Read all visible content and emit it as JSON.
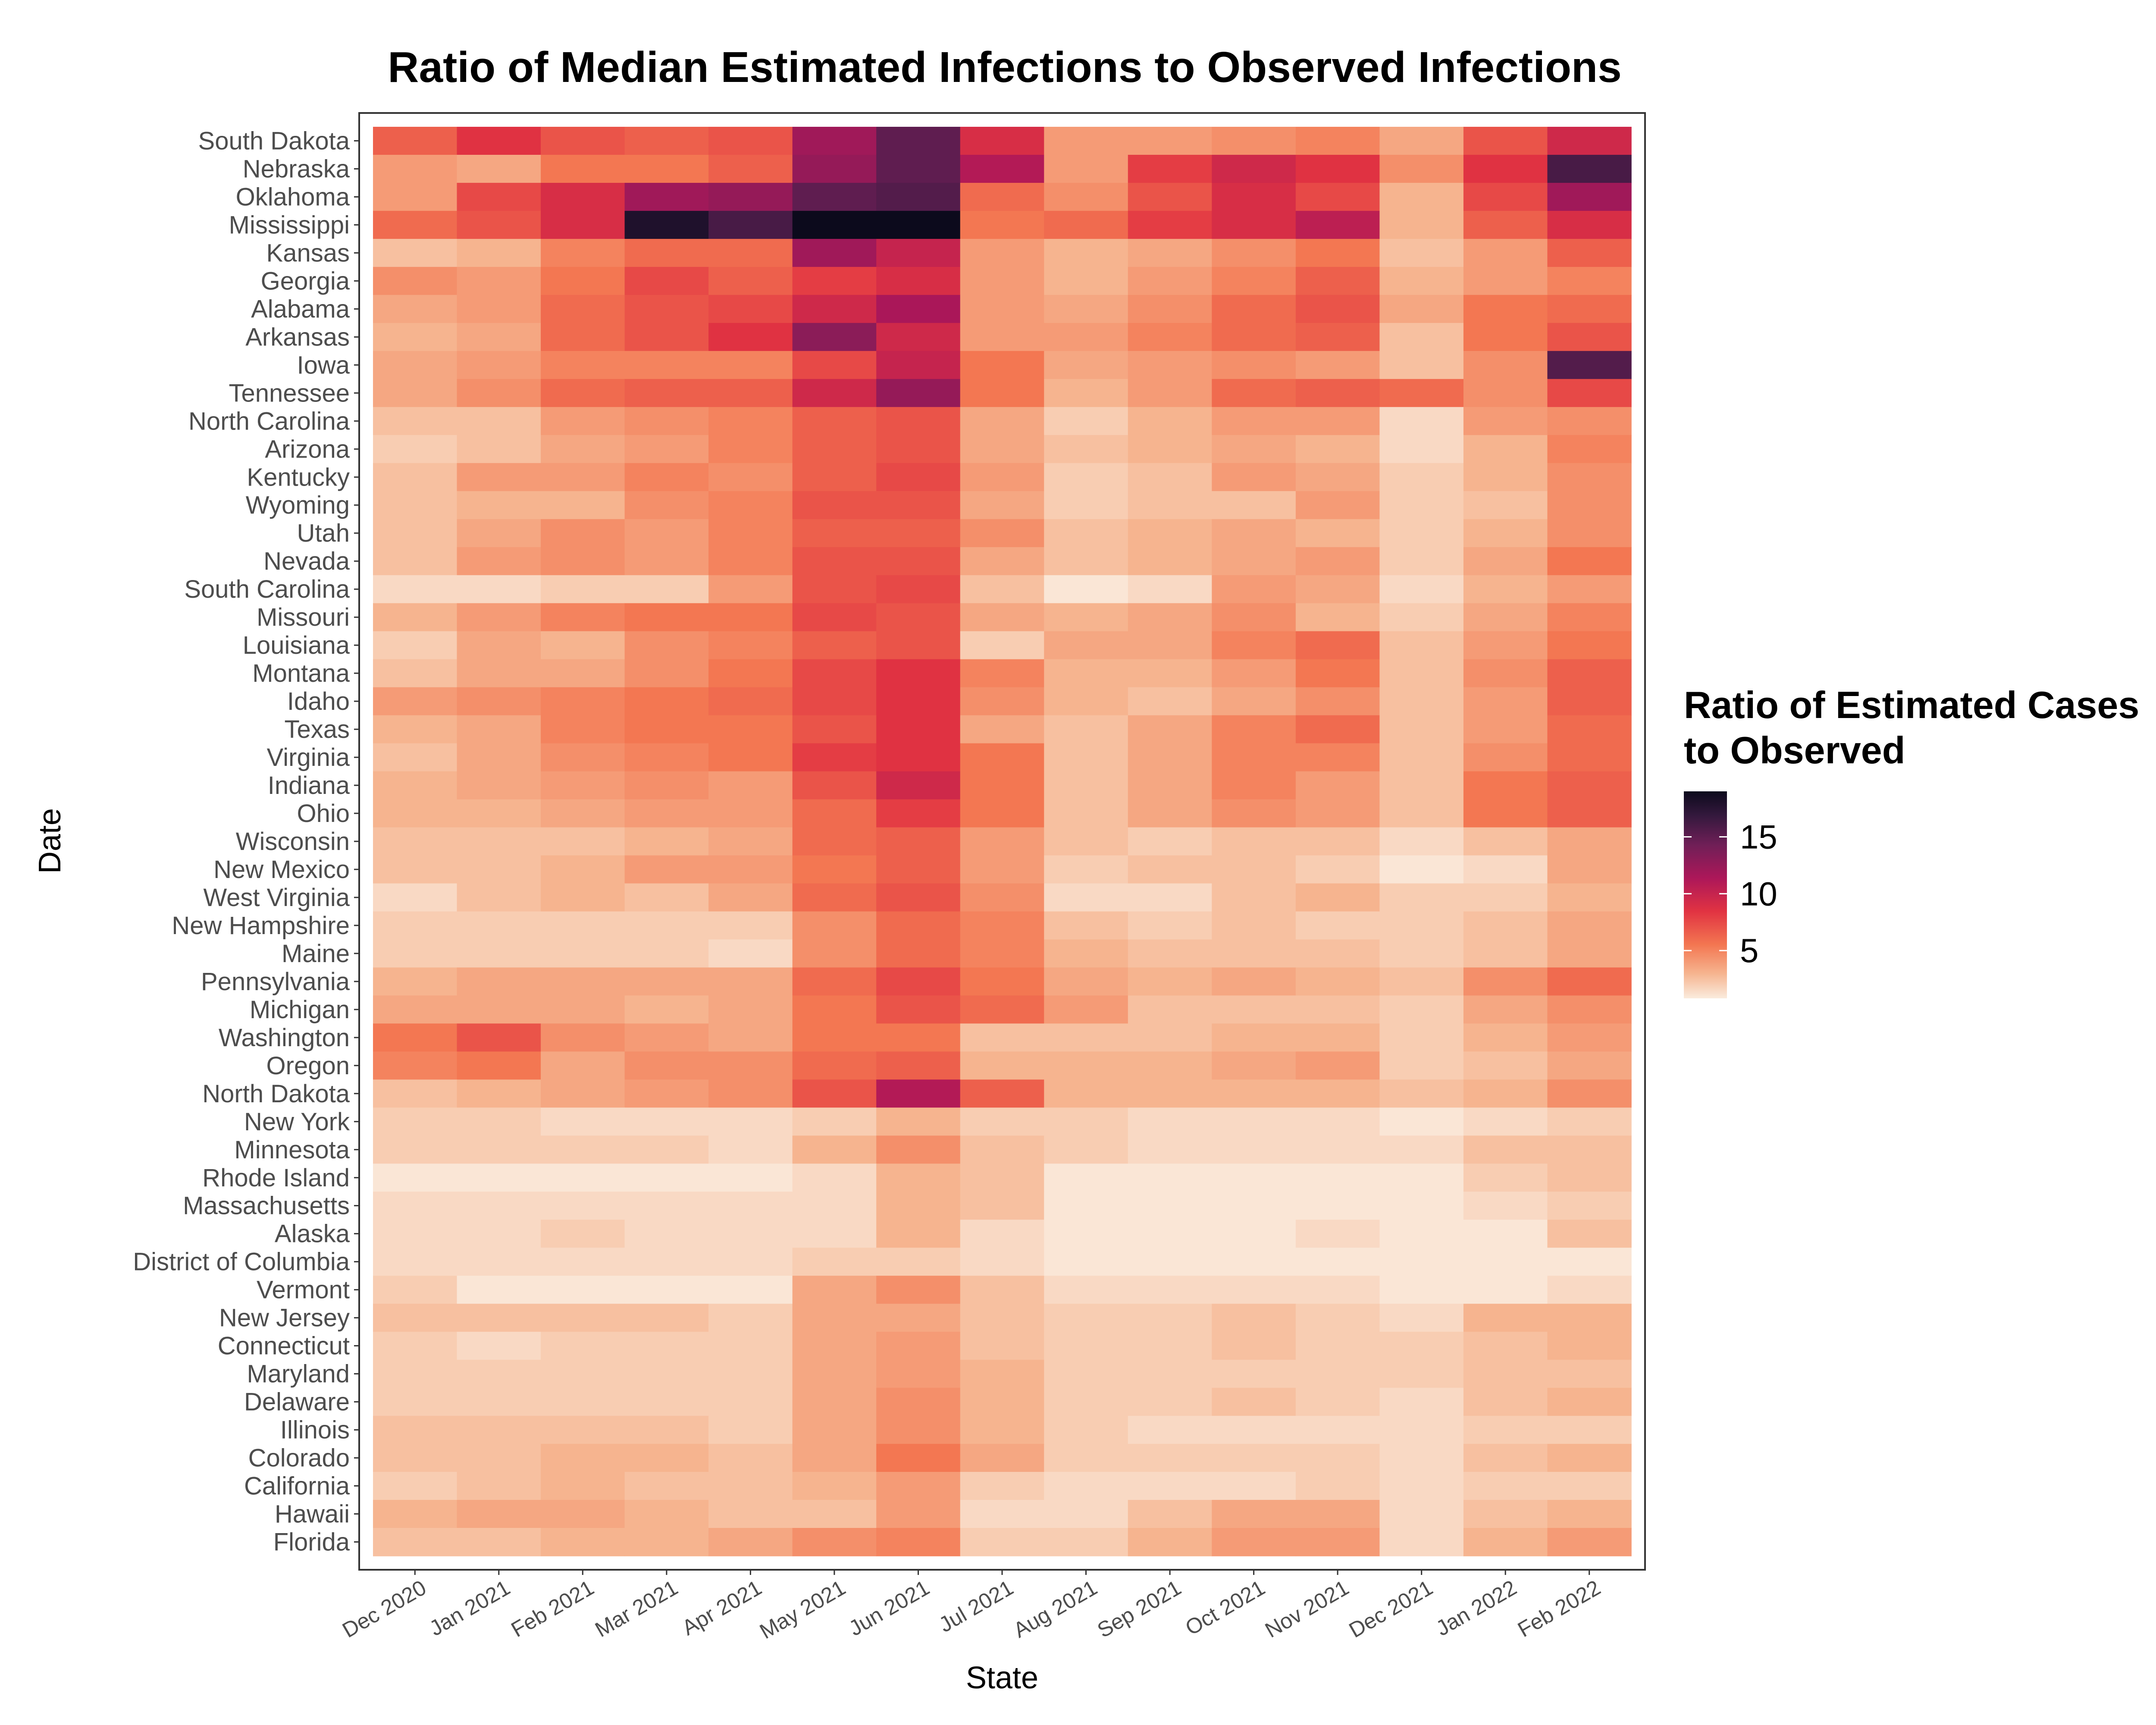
{
  "chart_data": {
    "type": "heatmap",
    "title": "Ratio of Median Estimated Infections to Observed Infections",
    "xlabel": "State",
    "ylabel": "Date",
    "x_categories": [
      "Dec 2020",
      "Jan 2021",
      "Feb 2021",
      "Mar 2021",
      "Apr 2021",
      "May 2021",
      "Jun 2021",
      "Jul 2021",
      "Aug 2021",
      "Sep 2021",
      "Oct 2021",
      "Nov 2021",
      "Dec 2021",
      "Jan 2022",
      "Feb 2022"
    ],
    "y_categories": [
      "South Dakota",
      "Nebraska",
      "Oklahoma",
      "Mississippi",
      "Kansas",
      "Georgia",
      "Alabama",
      "Arkansas",
      "Iowa",
      "Tennessee",
      "North Carolina",
      "Arizona",
      "Kentucky",
      "Wyoming",
      "Utah",
      "Nevada",
      "South Carolina",
      "Missouri",
      "Louisiana",
      "Montana",
      "Idaho",
      "Texas",
      "Virginia",
      "Indiana",
      "Ohio",
      "Wisconsin",
      "New Mexico",
      "West Virginia",
      "New Hampshire",
      "Maine",
      "Pennsylvania",
      "Michigan",
      "Washington",
      "Oregon",
      "North Dakota",
      "New York",
      "Minnesota",
      "Rhode Island",
      "Massachusetts",
      "Alaska",
      "District of Columbia",
      "Vermont",
      "New Jersey",
      "Connecticut",
      "Maryland",
      "Delaware",
      "Illinois",
      "Colorado",
      "California",
      "Hawaii",
      "Florida"
    ],
    "values": [
      [
        6.5,
        8.5,
        7,
        6.5,
        7,
        12,
        15,
        9,
        4,
        4,
        4.5,
        5,
        3.5,
        7,
        9.5
      ],
      [
        4,
        3.5,
        5.5,
        5.5,
        6.5,
        12.5,
        15,
        11,
        4,
        8,
        9.5,
        8.5,
        4.5,
        8.5,
        16
      ],
      [
        4,
        7.5,
        9,
        12,
        12.5,
        15,
        15.5,
        6,
        4.5,
        7,
        9,
        7.5,
        3,
        7.5,
        12
      ],
      [
        6,
        7,
        9,
        18,
        16,
        19,
        19,
        5.5,
        6,
        8,
        9,
        10.5,
        3,
        6.5,
        9
      ],
      [
        2.5,
        3,
        5,
        6,
        6,
        12,
        10,
        4,
        3,
        3.5,
        4.5,
        5.5,
        2.5,
        4,
        6.5
      ],
      [
        4.5,
        4,
        5.5,
        7.5,
        6.5,
        8,
        9,
        4,
        3,
        4,
        5,
        6.5,
        3,
        4,
        5
      ],
      [
        3.5,
        4,
        6,
        7,
        7.5,
        9.5,
        11.5,
        4,
        3.5,
        4.5,
        6,
        7,
        3.5,
        5.5,
        6
      ],
      [
        3,
        3.5,
        6,
        7,
        8.5,
        13,
        9.5,
        4,
        4,
        5,
        6,
        6.5,
        2.5,
        5.5,
        7
      ],
      [
        3.5,
        4,
        5,
        5,
        5,
        7.5,
        10,
        5.5,
        3.5,
        4,
        4.5,
        4,
        2.5,
        4.5,
        15.5
      ],
      [
        3.5,
        4.5,
        6,
        6.5,
        6.5,
        9.5,
        12.5,
        5.5,
        3,
        4,
        6,
        6.5,
        6,
        4.5,
        7.5
      ],
      [
        2.5,
        2.5,
        4,
        4.5,
        5,
        6.5,
        7,
        3.5,
        2,
        3,
        4,
        4,
        1.5,
        4,
        4.5
      ],
      [
        2,
        2.5,
        3.5,
        4,
        5,
        6.5,
        7,
        3.5,
        2.5,
        3,
        3.5,
        3,
        1.5,
        3,
        5
      ],
      [
        2.5,
        4,
        4,
        5,
        4.5,
        6.5,
        7.5,
        4,
        2,
        2.5,
        4,
        3.5,
        2,
        3,
        4.5
      ],
      [
        2.5,
        3,
        3,
        4.5,
        5,
        7,
        7,
        3.5,
        2,
        2.5,
        2.5,
        4,
        2,
        2.5,
        4.5
      ],
      [
        2.5,
        3.5,
        4.5,
        4,
        5,
        6.5,
        6.5,
        4.5,
        2.5,
        3,
        3.5,
        3,
        2,
        3,
        4.5
      ],
      [
        2.5,
        4,
        4.5,
        4,
        5,
        7,
        7,
        3.5,
        2.5,
        3,
        3.5,
        4,
        2,
        3.5,
        5.5
      ],
      [
        1.5,
        1.5,
        2,
        2,
        4,
        7,
        7.5,
        2.5,
        1,
        1.5,
        4,
        3.5,
        1.5,
        3,
        4
      ],
      [
        3,
        4,
        5,
        5.5,
        5.5,
        7.5,
        7,
        3.5,
        3,
        3.5,
        4.5,
        3,
        2,
        3.5,
        5
      ],
      [
        2,
        3.5,
        3,
        4.5,
        5,
        6.5,
        7,
        2,
        3.5,
        3.5,
        5,
        6,
        2.5,
        4,
        5.5
      ],
      [
        2.5,
        3.5,
        3.5,
        4.5,
        5.5,
        7.5,
        8.5,
        5,
        3,
        3,
        4,
        5.5,
        2.5,
        4.5,
        6.5
      ],
      [
        4,
        4.5,
        5,
        5.5,
        6,
        7.5,
        8.5,
        4.5,
        3,
        2.5,
        3.5,
        4.5,
        2.5,
        4,
        6.5
      ],
      [
        3,
        3.5,
        5,
        5.5,
        5.5,
        7,
        8.5,
        3.5,
        2.5,
        3.5,
        5,
        6,
        2.5,
        4,
        6
      ],
      [
        2.5,
        3.5,
        4.5,
        5,
        5.5,
        8,
        8.5,
        5.5,
        2.5,
        3.5,
        5,
        5,
        2.5,
        4.5,
        6
      ],
      [
        3,
        3.5,
        4,
        4.5,
        4,
        7,
        9.5,
        5.5,
        2.5,
        3.5,
        5,
        4,
        2.5,
        5.5,
        6.5
      ],
      [
        3,
        3,
        3.5,
        4,
        4,
        6,
        8,
        5.5,
        2.5,
        3.5,
        4.5,
        4,
        2.5,
        5.5,
        6.5
      ],
      [
        2.5,
        2.5,
        2.5,
        3,
        3.5,
        6,
        6.5,
        4,
        2.5,
        2,
        2.5,
        2.5,
        1.5,
        2.5,
        3.5
      ],
      [
        2.5,
        2.5,
        3,
        4,
        4,
        5.5,
        6.5,
        4,
        2,
        2.5,
        2.5,
        2,
        1,
        1.5,
        3.5
      ],
      [
        1.5,
        2.5,
        3,
        2.5,
        3.5,
        6,
        7,
        4.5,
        1.5,
        1.5,
        2.5,
        3,
        2,
        2,
        3
      ],
      [
        2,
        2,
        2,
        2,
        2,
        4.5,
        6,
        5,
        2.5,
        2,
        2.5,
        2,
        2,
        2.5,
        3.5
      ],
      [
        2,
        2,
        2,
        2,
        1.5,
        4.5,
        6,
        5,
        3,
        2.5,
        2.5,
        2.5,
        2,
        2.5,
        3.5
      ],
      [
        3,
        3.5,
        3.5,
        3.5,
        3.5,
        6,
        7.5,
        5.5,
        3.5,
        3,
        3.5,
        3,
        2.5,
        4.5,
        6
      ],
      [
        3.5,
        3.5,
        3.5,
        3,
        3.5,
        5.5,
        7,
        6,
        4,
        2.5,
        2.5,
        2.5,
        2,
        3.5,
        4.5
      ],
      [
        5.5,
        7,
        4.5,
        4,
        3.5,
        5.5,
        5.5,
        2.5,
        2.5,
        2.5,
        3,
        3,
        2,
        3,
        4
      ],
      [
        5,
        5.5,
        3.5,
        4.5,
        4.5,
        6,
        6.5,
        3,
        3,
        3,
        3.5,
        4,
        2,
        2.5,
        3.5
      ],
      [
        2.5,
        3,
        3.5,
        4,
        4.5,
        7,
        11,
        6.5,
        3,
        3,
        3,
        3,
        2.5,
        3,
        4.5
      ],
      [
        2,
        2,
        1.5,
        1.5,
        1.5,
        2,
        3,
        2,
        2,
        1.5,
        1.5,
        1.5,
        1,
        1.5,
        2
      ],
      [
        2,
        2,
        2,
        2,
        1.5,
        3,
        4.5,
        2.5,
        2,
        1.5,
        1.5,
        1.5,
        1.5,
        2.5,
        2.5
      ],
      [
        1,
        1,
        1,
        1,
        1,
        1.5,
        3,
        2.5,
        1,
        1,
        1,
        1,
        1,
        2,
        2.5
      ],
      [
        1.5,
        1.5,
        1.5,
        1.5,
        1.5,
        1.5,
        3,
        2.5,
        1,
        1,
        1,
        1,
        1,
        1.5,
        2
      ],
      [
        1.5,
        1.5,
        2,
        1.5,
        1.5,
        1.5,
        3,
        1.5,
        1,
        1,
        1,
        1.5,
        1,
        1,
        2.5
      ],
      [
        1.5,
        1.5,
        1.5,
        1.5,
        1.5,
        2,
        2,
        1.5,
        1,
        1,
        1,
        1,
        1,
        1,
        1
      ],
      [
        2,
        1,
        1,
        1,
        1,
        3.5,
        4.5,
        2.5,
        1.5,
        1.5,
        1.5,
        1.5,
        1,
        1,
        1.5
      ],
      [
        2.5,
        2.5,
        2.5,
        2.5,
        2,
        3.5,
        3.5,
        2.5,
        2,
        2,
        2.5,
        2,
        1.5,
        3,
        3
      ],
      [
        2,
        1.5,
        2,
        2,
        2,
        3.5,
        4,
        2.5,
        2,
        2,
        2.5,
        2,
        2,
        2.5,
        3
      ],
      [
        2,
        2,
        2,
        2,
        2,
        3.5,
        4,
        3,
        2,
        2,
        2,
        2,
        2,
        2.5,
        2.5
      ],
      [
        2,
        2,
        2,
        2,
        2,
        3.5,
        4.5,
        3,
        2,
        2,
        2.5,
        2,
        1.5,
        2.5,
        3
      ],
      [
        2.5,
        2.5,
        2.5,
        2.5,
        2,
        3.5,
        4.5,
        3,
        2,
        1.5,
        1.5,
        1.5,
        1.5,
        2,
        2
      ],
      [
        2.5,
        2.5,
        3,
        3,
        2.5,
        3.5,
        5.5,
        3.5,
        2,
        2,
        2,
        2,
        1.5,
        2.5,
        3
      ],
      [
        2,
        2.5,
        3,
        2.5,
        2.5,
        3,
        4,
        2,
        1.5,
        1.5,
        1.5,
        2,
        1.5,
        2,
        2
      ],
      [
        3,
        3.5,
        3.5,
        3,
        2.5,
        2.5,
        4,
        1.5,
        1.5,
        2.5,
        3.5,
        3.5,
        1.5,
        2.5,
        3
      ],
      [
        2.5,
        2.5,
        3,
        3,
        3.5,
        4.5,
        5,
        2,
        2,
        3,
        4,
        4,
        1.5,
        3,
        4
      ]
    ],
    "legend": {
      "title": [
        "Ratio of Estimated Cases",
        "to Observed"
      ],
      "ticks": [
        5,
        10,
        15
      ],
      "tick_labels": [
        "5",
        "10",
        "15"
      ],
      "range": [
        0.8,
        19
      ],
      "position": "right"
    },
    "grid": false
  }
}
